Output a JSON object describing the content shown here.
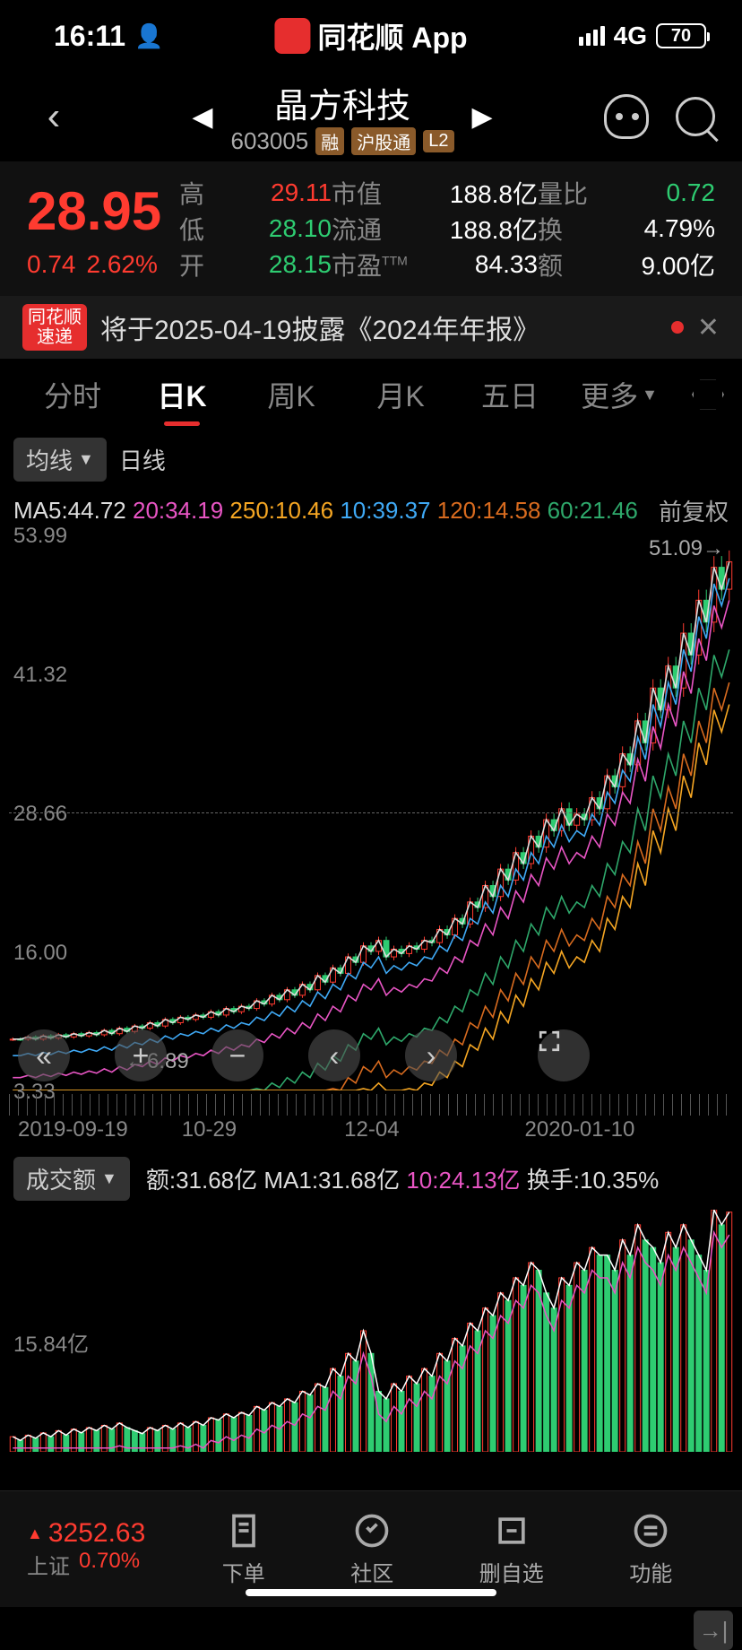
{
  "status": {
    "time": "16:11",
    "app_name": "同花顺 App",
    "network": "4G",
    "battery": "70"
  },
  "header": {
    "stock_name": "晶方科技",
    "stock_code": "603005",
    "badges": [
      "融",
      "沪股通",
      "L2"
    ]
  },
  "quote": {
    "price": "28.95",
    "price_color": "#ff3b30",
    "change": "0.74",
    "change_pct": "2.62%",
    "high_lbl": "高",
    "high": "29.11",
    "high_color": "#ff3b30",
    "low_lbl": "低",
    "low": "28.10",
    "low_color": "#2ecc71",
    "open_lbl": "开",
    "open": "28.15",
    "open_color": "#2ecc71",
    "mktcap_lbl": "市值",
    "mktcap": "188.8亿",
    "float_lbl": "流通",
    "float_val": "188.8亿",
    "pe_lbl": "市盈",
    "pe_ttm": "TTM",
    "pe": "84.33",
    "volratio_lbl": "量比",
    "volratio": "0.72",
    "volratio_color": "#2ecc71",
    "turnover_lbl": "换",
    "turnover": "4.79%",
    "amount_lbl": "额",
    "amount": "9.00亿"
  },
  "news": {
    "badge": "同花顺\n速递",
    "text": "将于2025-04-19披露《2024年年报》"
  },
  "tabs": {
    "items": [
      "分时",
      "日K",
      "周K",
      "月K",
      "五日",
      "更多"
    ],
    "active": 1
  },
  "ma_bar": {
    "dropdown": "均线",
    "period": "日线",
    "ma": [
      {
        "label": "MA5:44.72",
        "color": "#dddddd"
      },
      {
        "label": "20:34.19",
        "color": "#e855c4"
      },
      {
        "label": "250:10.46",
        "color": "#f5a623"
      },
      {
        "label": "10:39.37",
        "color": "#3fa9f5"
      },
      {
        "label": "120:14.58",
        "color": "#d86b1f"
      },
      {
        "label": "60:21.46",
        "color": "#2ea86b"
      }
    ],
    "right": "前复权"
  },
  "chart": {
    "ylim": [
      3.33,
      53.99
    ],
    "y_ticks": [
      "53.99",
      "41.32",
      "28.66",
      "16.00",
      "3.33"
    ],
    "dash_y": 28.66,
    "top_right": "51.09→",
    "low_arrow": "←6.89",
    "x_labels": [
      "2019-09-19",
      "10-29",
      "12-04",
      "2020-01-10"
    ],
    "candles_close": [
      8,
      8,
      8.2,
      8,
      8.3,
      8.1,
      8.4,
      8.2,
      8.5,
      8.3,
      8.6,
      8.4,
      8.8,
      8.5,
      9,
      8.7,
      9.2,
      9,
      9.5,
      9.2,
      9.8,
      9.5,
      10,
      9.8,
      10.2,
      10,
      10.5,
      10.2,
      10.8,
      10.5,
      11,
      10.8,
      11.5,
      11.2,
      12,
      11.6,
      12.5,
      12,
      13,
      12.5,
      13.8,
      13.2,
      14.5,
      14,
      15.5,
      15,
      16.5,
      16,
      17,
      15.5,
      16.2,
      15.8,
      16.5,
      16.2,
      17,
      16.8,
      18,
      17.5,
      19,
      18.5,
      20.5,
      20,
      22,
      21,
      23.5,
      22.5,
      25,
      24,
      26.5,
      25.5,
      28,
      27,
      29,
      27.5,
      28.5,
      28,
      30,
      29,
      32,
      31,
      34,
      33,
      37,
      35,
      40,
      38,
      42,
      40,
      45,
      43,
      48,
      46,
      51,
      49,
      51.5
    ],
    "candles_up": [
      1,
      0,
      1,
      0,
      1,
      0,
      1,
      0,
      1,
      0,
      1,
      0,
      1,
      0,
      1,
      0,
      1,
      0,
      1,
      0,
      1,
      0,
      1,
      0,
      1,
      0,
      1,
      0,
      1,
      0,
      1,
      0,
      1,
      0,
      1,
      0,
      1,
      0,
      1,
      0,
      1,
      0,
      1,
      0,
      1,
      0,
      1,
      0,
      1,
      0,
      1,
      0,
      1,
      0,
      1,
      0,
      1,
      0,
      1,
      0,
      1,
      0,
      1,
      0,
      1,
      0,
      1,
      0,
      1,
      0,
      1,
      0,
      1,
      0,
      1,
      0,
      1,
      0,
      1,
      0,
      1,
      0,
      1,
      0,
      1,
      0,
      1,
      0,
      1,
      0,
      1,
      0,
      1,
      0,
      1
    ],
    "ma_lines": {
      "ma5": {
        "color": "#dddddd",
        "offset": 0
      },
      "ma10": {
        "color": "#3fa9f5",
        "offset": -1.5
      },
      "ma20": {
        "color": "#e855c4",
        "offset": -3.5
      },
      "ma60": {
        "color": "#2ea86b",
        "offset": -8
      },
      "ma120": {
        "color": "#d86b1f",
        "offset": -11
      },
      "ma250": {
        "color": "#f5a623",
        "offset": -13
      }
    }
  },
  "volume": {
    "dropdown": "成交额",
    "items": [
      {
        "label": "额:31.68亿",
        "color": "#dddddd"
      },
      {
        "label": "MA1:31.68亿",
        "color": "#dddddd"
      },
      {
        "label": "10:24.13亿",
        "color": "#e855c4"
      },
      {
        "label": "换手:10.35%",
        "color": "#dddddd"
      }
    ],
    "y_tick": "15.84亿",
    "ymax": 32,
    "bars": [
      2,
      1.5,
      2.2,
      1.8,
      2.5,
      2,
      2.8,
      2.2,
      3,
      2.5,
      3.2,
      2.8,
      3.5,
      3,
      3.8,
      3.2,
      2.8,
      2.4,
      3.2,
      2.8,
      3.5,
      3,
      3.8,
      3.2,
      4,
      3.5,
      4.5,
      4.2,
      5,
      4.5,
      5.2,
      4.8,
      6,
      5.5,
      6.5,
      6,
      7,
      6.5,
      8,
      7.5,
      9,
      8.5,
      11,
      10,
      13,
      12,
      16,
      13,
      8,
      7,
      9,
      8,
      10,
      9,
      11,
      10,
      13,
      12,
      15,
      14,
      17,
      16,
      19,
      18,
      21,
      20,
      23,
      22,
      25,
      24,
      21,
      19,
      23,
      22,
      25,
      24,
      27,
      26,
      26,
      24,
      28,
      26,
      30,
      28,
      27,
      25,
      29,
      27,
      30,
      28,
      26,
      24,
      32,
      30,
      31.68
    ],
    "bars_up": [
      1,
      0,
      1,
      0,
      1,
      0,
      1,
      0,
      1,
      0,
      1,
      0,
      1,
      0,
      1,
      0,
      0,
      0,
      1,
      0,
      1,
      0,
      1,
      0,
      1,
      0,
      1,
      0,
      1,
      0,
      1,
      0,
      1,
      0,
      1,
      0,
      1,
      0,
      1,
      0,
      1,
      0,
      1,
      0,
      1,
      0,
      1,
      0,
      0,
      0,
      1,
      0,
      1,
      0,
      1,
      0,
      1,
      0,
      1,
      0,
      1,
      0,
      1,
      0,
      1,
      0,
      1,
      0,
      1,
      0,
      0,
      0,
      1,
      0,
      1,
      0,
      1,
      0,
      0,
      0,
      1,
      0,
      1,
      0,
      0,
      0,
      1,
      0,
      1,
      0,
      0,
      0,
      1,
      0,
      1
    ],
    "ma_lines": {
      "ma1": {
        "color": "#ffffff"
      },
      "ma10": {
        "color": "#e855c4"
      }
    }
  },
  "bottom": {
    "index_val": "3252.63",
    "index_name": "上证",
    "index_pct": "0.70%",
    "buttons": [
      {
        "label": "下单",
        "icon": "order"
      },
      {
        "label": "社区",
        "icon": "community"
      },
      {
        "label": "删自选",
        "icon": "remove"
      },
      {
        "label": "功能",
        "icon": "more"
      }
    ]
  }
}
